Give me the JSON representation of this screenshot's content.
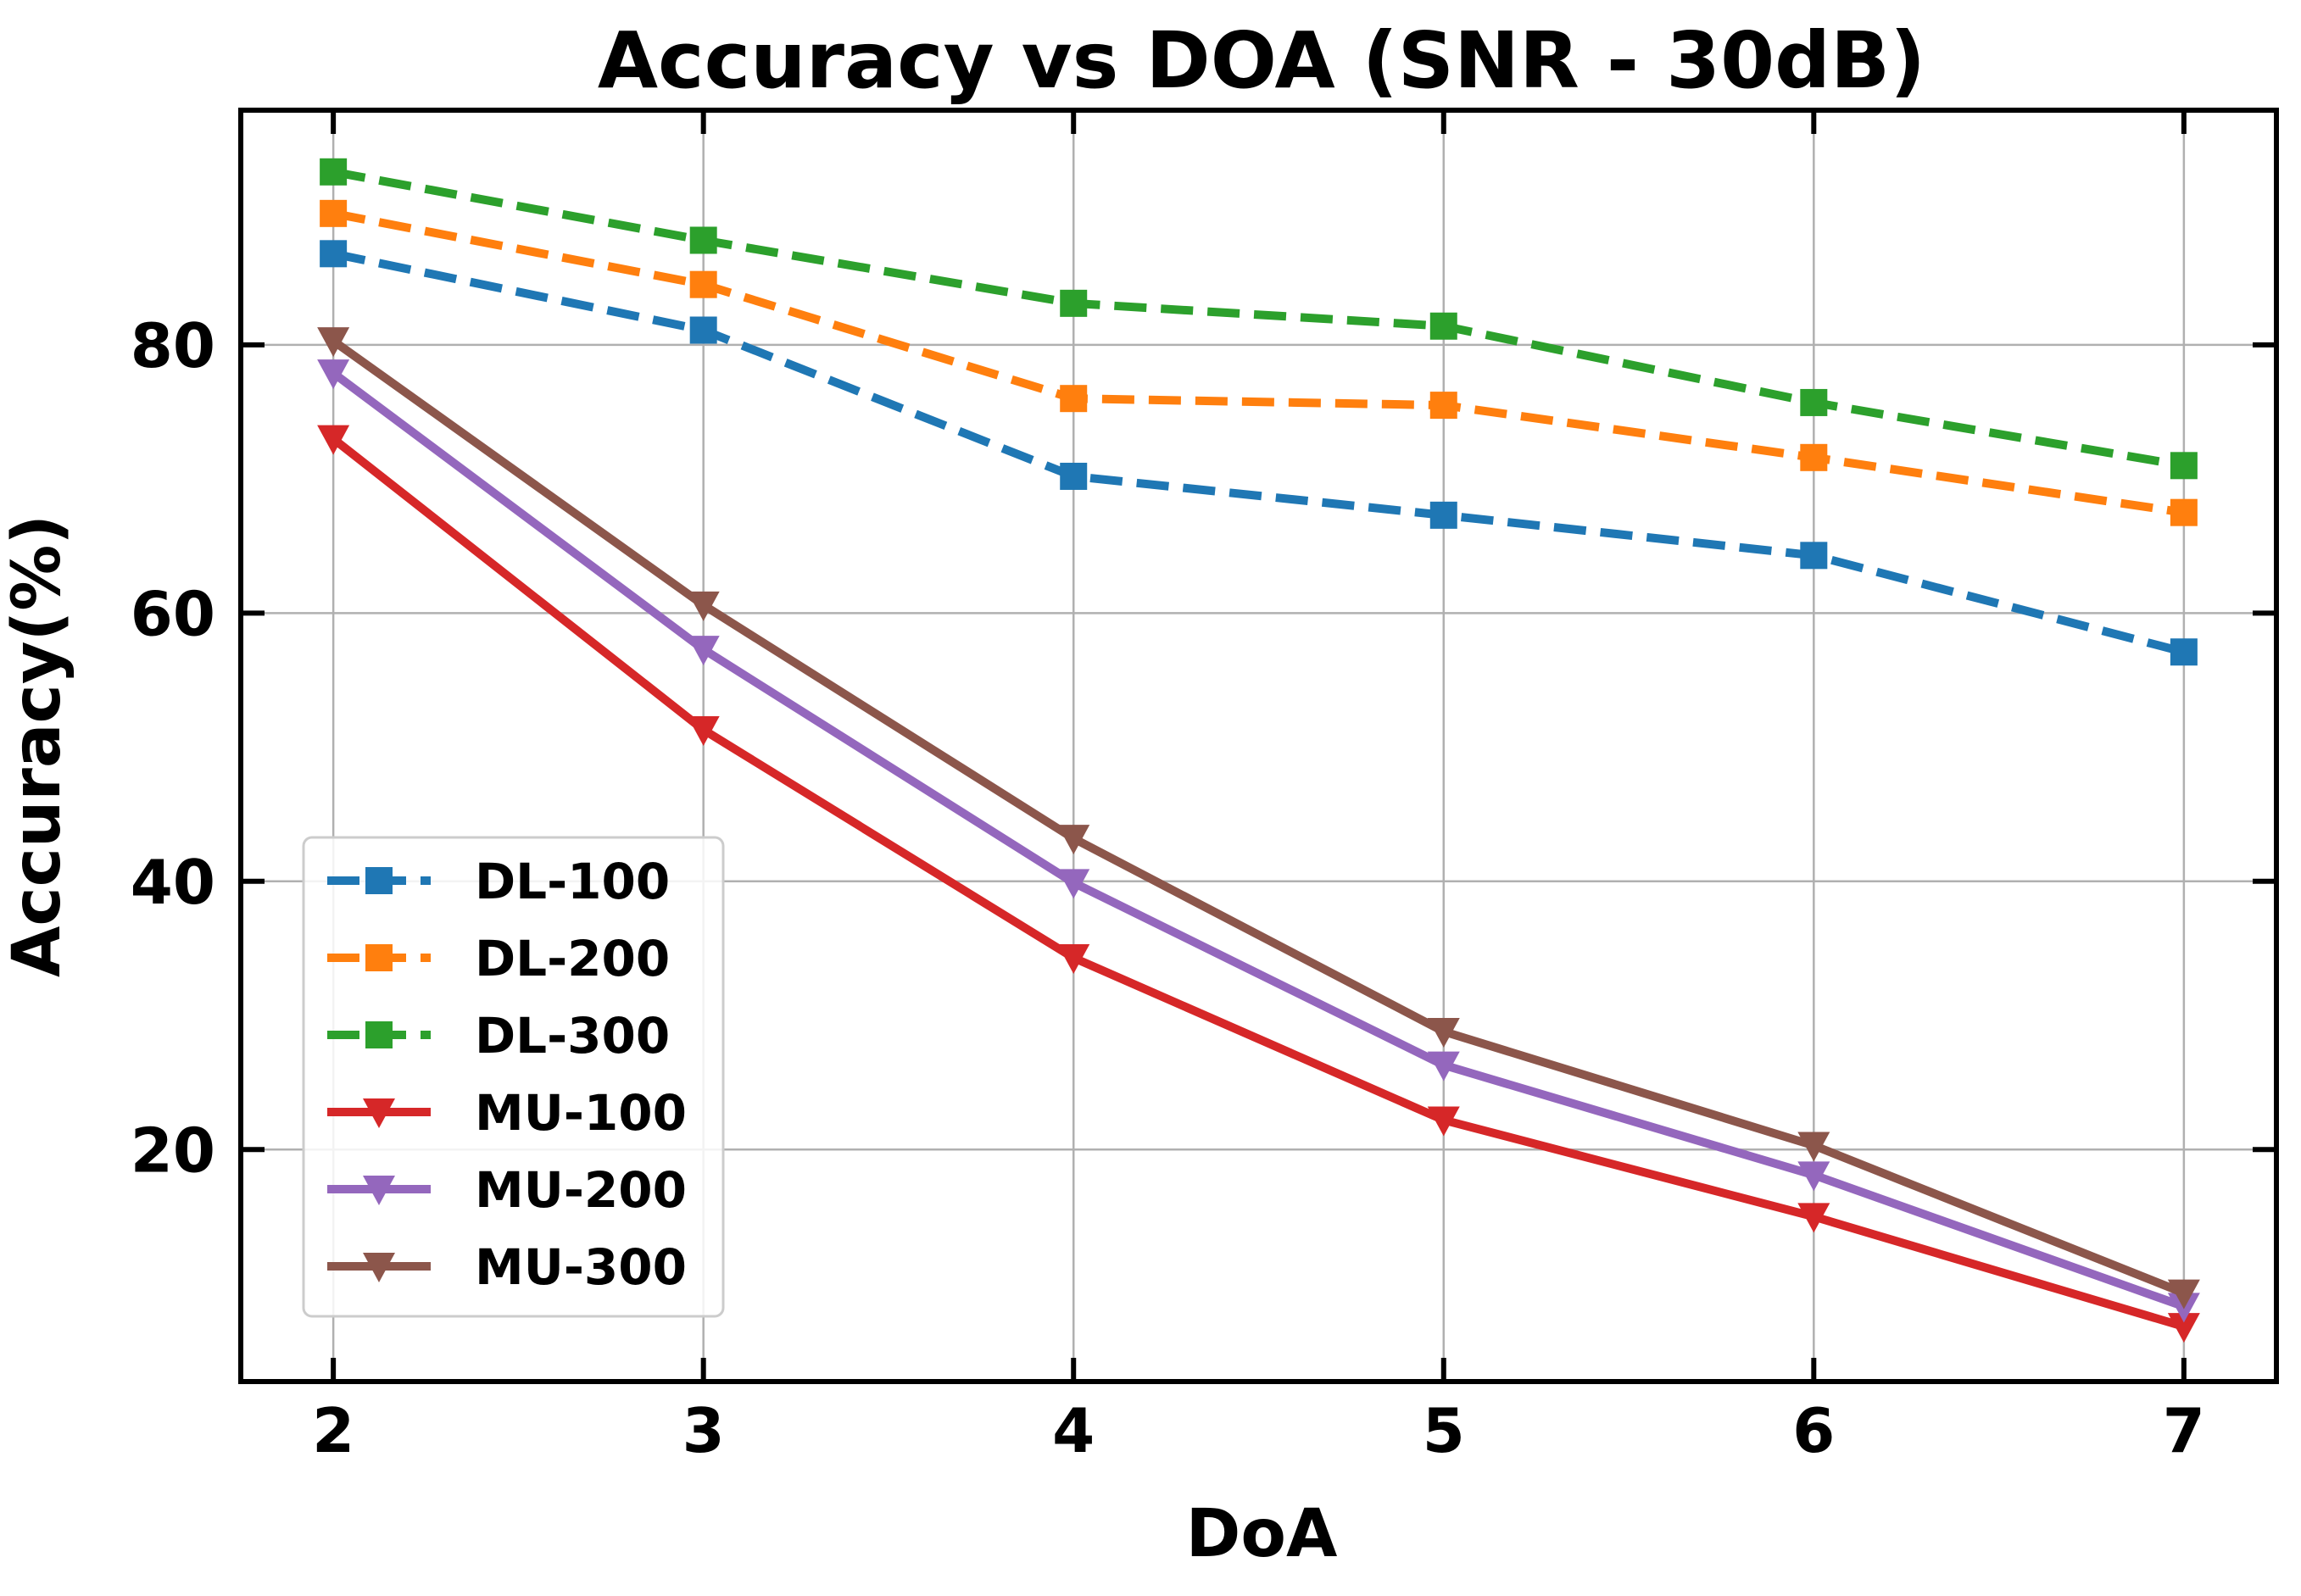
{
  "chart_data": {
    "type": "line",
    "title": "Accuracy vs DOA (SNR - 30dB)",
    "xlabel": "DoA",
    "ylabel": "Accuracy(%)",
    "x": [
      2,
      3,
      4,
      5,
      6,
      7
    ],
    "xlim": [
      1.75,
      7.25
    ],
    "ylim": [
      2.7,
      97.5
    ],
    "xticks": [
      2,
      3,
      4,
      5,
      6,
      7
    ],
    "yticks": [
      20,
      40,
      60,
      80
    ],
    "x_tick_labels": [
      "2",
      "3",
      "4",
      "5",
      "6",
      "7"
    ],
    "y_tick_labels": [
      "20",
      "40",
      "60",
      "80"
    ],
    "grid": true,
    "legend_position": "lower-left",
    "series": [
      {
        "name": "DL-100",
        "values": [
          86.8,
          81.1,
          70.2,
          67.3,
          64.3,
          57.1
        ],
        "color": "#1f77b4",
        "dashed": true,
        "marker": "square"
      },
      {
        "name": "DL-200",
        "values": [
          89.8,
          84.5,
          76.0,
          75.5,
          71.6,
          67.5
        ],
        "color": "#ff7f0e",
        "dashed": true,
        "marker": "square"
      },
      {
        "name": "DL-300",
        "values": [
          92.9,
          87.8,
          83.1,
          81.4,
          75.7,
          71.0
        ],
        "color": "#2ca02c",
        "dashed": true,
        "marker": "square"
      },
      {
        "name": "MU-100",
        "values": [
          73.0,
          51.3,
          34.3,
          22.2,
          15.0,
          6.8
        ],
        "color": "#d62728",
        "dashed": false,
        "marker": "triangle-down"
      },
      {
        "name": "MU-200",
        "values": [
          77.9,
          57.3,
          39.9,
          26.3,
          18.1,
          8.3
        ],
        "color": "#9467bd",
        "dashed": false,
        "marker": "triangle-down"
      },
      {
        "name": "MU-300",
        "values": [
          80.3,
          60.6,
          43.2,
          28.8,
          20.3,
          9.3
        ],
        "color": "#8c564b",
        "dashed": false,
        "marker": "triangle-down"
      }
    ]
  }
}
